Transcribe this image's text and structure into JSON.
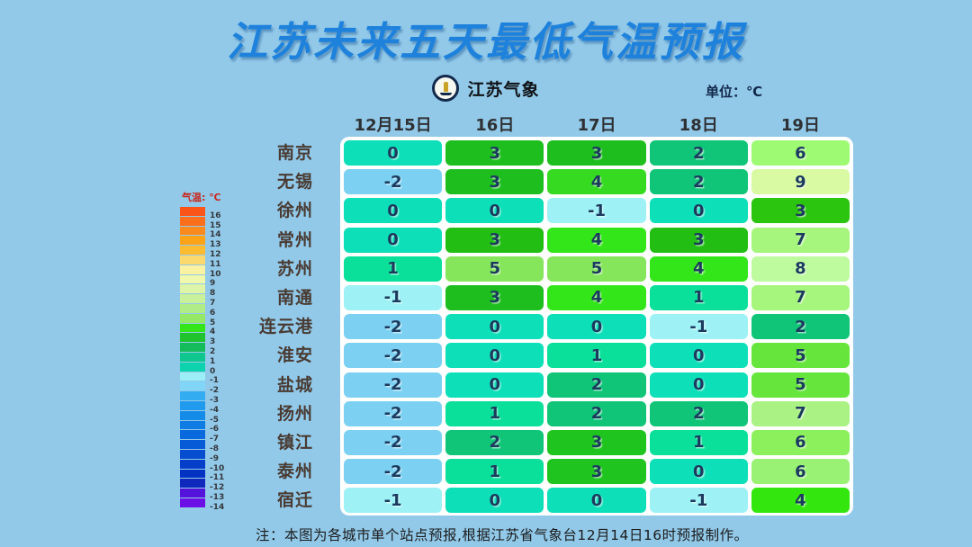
{
  "page": {
    "title": "江苏未来五天最低气温预报",
    "logo_text": "江苏气象",
    "unit_label": "单位：℃",
    "footer_note": "注：本图为各城市单个站点预报,根据江苏省气象台12月14日16时预报制作。"
  },
  "colors": {
    "background": "#92C9E9",
    "title_blue": "#1E82DC",
    "cell_text": "#1B3A5E",
    "city_text": "#493B33",
    "legend_title_red": "#C8281E",
    "table_frame": "#FFFFFF"
  },
  "legend": {
    "title": "气温: ℃",
    "entries": [
      {
        "label": "16",
        "color": "#FB5418"
      },
      {
        "label": "15",
        "color": "#FB6E1C"
      },
      {
        "label": "14",
        "color": "#FB8A1C"
      },
      {
        "label": "13",
        "color": "#FCA318"
      },
      {
        "label": "12",
        "color": "#FCBB30"
      },
      {
        "label": "11",
        "color": "#FBD96E"
      },
      {
        "label": "10",
        "color": "#F8F2A2"
      },
      {
        "label": "9",
        "color": "#EFF8AC"
      },
      {
        "label": "8",
        "color": "#DEF4A6"
      },
      {
        "label": "7",
        "color": "#C9F09A"
      },
      {
        "label": "6",
        "color": "#B1ED86"
      },
      {
        "label": "5",
        "color": "#95E966"
      },
      {
        "label": "4",
        "color": "#34E51A"
      },
      {
        "label": "3",
        "color": "#20C32E"
      },
      {
        "label": "2",
        "color": "#15BC5C"
      },
      {
        "label": "1",
        "color": "#0FC78E"
      },
      {
        "label": "0",
        "color": "#0CD3AE"
      },
      {
        "label": "-1",
        "color": "#9BEEF5"
      },
      {
        "label": "-2",
        "color": "#81D5F6"
      },
      {
        "label": "-3",
        "color": "#34ACF1"
      },
      {
        "label": "-4",
        "color": "#209AEC"
      },
      {
        "label": "-5",
        "color": "#158BE8"
      },
      {
        "label": "-6",
        "color": "#0F7CE3"
      },
      {
        "label": "-7",
        "color": "#0A6ADD"
      },
      {
        "label": "-8",
        "color": "#085BD6"
      },
      {
        "label": "-9",
        "color": "#064DCF"
      },
      {
        "label": "-10",
        "color": "#053FC9"
      },
      {
        "label": "-11",
        "color": "#0432C2"
      },
      {
        "label": "-12",
        "color": "#1028BC"
      },
      {
        "label": "-13",
        "color": "#5313DA"
      },
      {
        "label": "-14",
        "color": "#6C0FE7"
      }
    ]
  },
  "chart_data": {
    "type": "heatmap",
    "title": "江苏未来五天最低气温预报",
    "unit": "℃",
    "value_range": [
      -14,
      16
    ],
    "columns": [
      "12月15日",
      "16日",
      "17日",
      "18日",
      "19日"
    ],
    "rows": [
      {
        "city": "南京",
        "values": [
          0,
          3,
          3,
          2,
          6
        ],
        "colors": [
          "#0DDFB8",
          "#1FBE1F",
          "#1FBE1F",
          "#10C478",
          "#9EFA73"
        ]
      },
      {
        "city": "无锡",
        "values": [
          -2,
          3,
          4,
          2,
          9
        ],
        "colors": [
          "#7CD1F2",
          "#1FBE1F",
          "#36DB21",
          "#10C478",
          "#D9FAA3"
        ]
      },
      {
        "city": "徐州",
        "values": [
          0,
          0,
          -1,
          0,
          3
        ],
        "colors": [
          "#0DDFB8",
          "#0DDFB8",
          "#9EF2F5",
          "#0DDFB8",
          "#2BC40F"
        ]
      },
      {
        "city": "常州",
        "values": [
          0,
          3,
          4,
          3,
          7
        ],
        "colors": [
          "#0DDFB8",
          "#22BE14",
          "#33E619",
          "#22BE14",
          "#A6F57D"
        ]
      },
      {
        "city": "苏州",
        "values": [
          1,
          5,
          5,
          4,
          8
        ],
        "colors": [
          "#0AE099",
          "#85E65C",
          "#85E65C",
          "#33E619",
          "#BEFA9E"
        ]
      },
      {
        "city": "南通",
        "values": [
          -1,
          3,
          4,
          1,
          7
        ],
        "colors": [
          "#9EF2F5",
          "#1FBE1F",
          "#33E619",
          "#0AE099",
          "#A6F57D"
        ]
      },
      {
        "city": "连云港",
        "values": [
          -2,
          0,
          0,
          -1,
          2
        ],
        "colors": [
          "#7CD1F2",
          "#0DDFB8",
          "#0DDFB8",
          "#9EF2F5",
          "#10C478"
        ]
      },
      {
        "city": "淮安",
        "values": [
          -2,
          0,
          1,
          0,
          5
        ],
        "colors": [
          "#7CD1F2",
          "#0DDFB8",
          "#0AE099",
          "#0DDFB8",
          "#66E63D"
        ]
      },
      {
        "city": "盐城",
        "values": [
          -2,
          0,
          2,
          0,
          5
        ],
        "colors": [
          "#7CD1F2",
          "#0DDFB8",
          "#10C478",
          "#0DDFB8",
          "#66E63D"
        ]
      },
      {
        "city": "扬州",
        "values": [
          -2,
          1,
          2,
          2,
          7
        ],
        "colors": [
          "#7CD1F2",
          "#0AE099",
          "#10C478",
          "#10C478",
          "#ABF285"
        ]
      },
      {
        "city": "镇江",
        "values": [
          -2,
          2,
          3,
          1,
          6
        ],
        "colors": [
          "#7CD1F2",
          "#10C478",
          "#1FC41F",
          "#0AE099",
          "#8CEF5C"
        ]
      },
      {
        "city": "泰州",
        "values": [
          -2,
          1,
          3,
          0,
          6
        ],
        "colors": [
          "#7CD1F2",
          "#0AE099",
          "#1FC41F",
          "#0DDFB8",
          "#99F273"
        ]
      },
      {
        "city": "宿迁",
        "values": [
          -1,
          0,
          0,
          -1,
          4
        ],
        "colors": [
          "#9EF2F5",
          "#0DDFB8",
          "#0DDFB8",
          "#9EF2F5",
          "#33E60D"
        ]
      }
    ]
  }
}
